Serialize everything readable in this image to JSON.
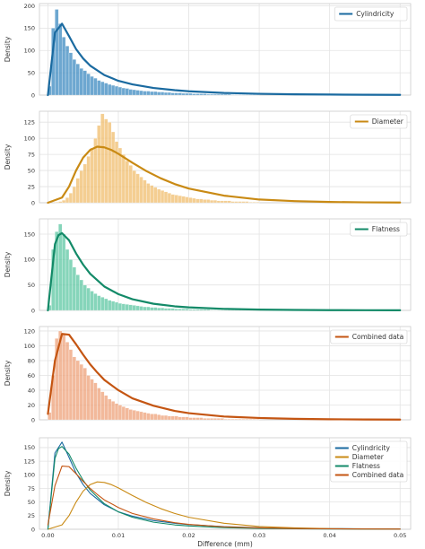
{
  "chart_data": [
    {
      "type": "bar",
      "ylabel": "Density",
      "xlim": [
        -0.0012,
        0.0515
      ],
      "ylim": [
        0,
        205
      ],
      "yticks": [
        0,
        50,
        100,
        150,
        200
      ],
      "xticks": [
        0.0,
        0.01,
        0.02,
        0.03,
        0.04,
        0.05
      ],
      "legend_position": "top-right",
      "color": "#3c89c0",
      "histogram": {
        "bin_width": 0.0005,
        "heights": [
          20,
          150,
          192,
          160,
          130,
          110,
          95,
          80,
          70,
          60,
          55,
          48,
          42,
          38,
          33,
          30,
          27,
          24,
          22,
          20,
          18,
          16,
          15,
          13,
          12,
          11,
          10,
          9,
          9,
          8,
          8,
          7,
          7,
          6,
          6,
          5,
          5,
          5,
          4,
          4,
          4,
          3,
          3,
          3,
          3,
          2,
          2,
          2,
          2,
          2,
          2,
          2,
          1,
          1,
          1,
          1,
          1,
          1,
          1,
          1
        ]
      },
      "series": [
        {
          "name": "Cylindricity",
          "color": "#1a6aa0",
          "x": [
            0.0,
            0.001,
            0.002,
            0.003,
            0.004,
            0.005,
            0.006,
            0.008,
            0.01,
            0.012,
            0.015,
            0.018,
            0.02,
            0.025,
            0.03,
            0.035,
            0.04,
            0.045,
            0.05
          ],
          "y": [
            0,
            140,
            160,
            132,
            103,
            82,
            66,
            45,
            32,
            24,
            16,
            11,
            8.5,
            4.8,
            2.9,
            1.8,
            1.2,
            0.8,
            0.5
          ]
        }
      ]
    },
    {
      "type": "bar",
      "ylabel": "Density",
      "xlim": [
        -0.0012,
        0.0515
      ],
      "ylim": [
        0,
        142
      ],
      "yticks": [
        0,
        25,
        50,
        75,
        100,
        125
      ],
      "xticks": [
        0.0,
        0.01,
        0.02,
        0.03,
        0.04,
        0.05
      ],
      "legend_position": "top-right",
      "color": "#f0be6e",
      "histogram": {
        "bin_width": 0.0005,
        "heights": [
          0,
          0,
          1,
          2,
          4,
          8,
          15,
          25,
          38,
          50,
          60,
          72,
          85,
          100,
          120,
          138,
          130,
          125,
          110,
          95,
          85,
          75,
          65,
          58,
          50,
          45,
          40,
          35,
          30,
          27,
          24,
          21,
          19,
          17,
          15,
          13,
          12,
          11,
          10,
          9,
          8,
          7,
          6,
          6,
          5,
          5,
          4,
          4,
          3,
          3,
          3,
          3,
          2,
          2,
          2,
          2,
          2,
          1,
          1,
          1
        ]
      },
      "series": [
        {
          "name": "Diameter",
          "color": "#c98a14",
          "x": [
            0.0,
            0.002,
            0.003,
            0.004,
            0.005,
            0.006,
            0.007,
            0.008,
            0.009,
            0.01,
            0.012,
            0.014,
            0.016,
            0.018,
            0.02,
            0.025,
            0.03,
            0.035,
            0.04,
            0.045,
            0.05
          ],
          "y": [
            0,
            8,
            25,
            50,
            70,
            82,
            87,
            86,
            82,
            76,
            62,
            49,
            38,
            29,
            22,
            11,
            5,
            2.5,
            1.2,
            0.6,
            0.3
          ]
        }
      ]
    },
    {
      "type": "bar",
      "ylabel": "Density",
      "xlim": [
        -0.0012,
        0.0515
      ],
      "ylim": [
        0,
        180
      ],
      "yticks": [
        0,
        50,
        100,
        150
      ],
      "xticks": [
        0.0,
        0.01,
        0.02,
        0.03,
        0.04,
        0.05
      ],
      "legend_position": "top-right",
      "color": "#5ec7a3",
      "histogram": {
        "bin_width": 0.0005,
        "heights": [
          10,
          120,
          155,
          170,
          150,
          120,
          100,
          85,
          70,
          60,
          50,
          44,
          38,
          33,
          29,
          26,
          23,
          20,
          18,
          16,
          14,
          13,
          12,
          11,
          10,
          9,
          8,
          7,
          7,
          6,
          6,
          5,
          5,
          4,
          4,
          4,
          3,
          3,
          3,
          3,
          2,
          2,
          2,
          2,
          2,
          2,
          1,
          1,
          1,
          1,
          1,
          1,
          1,
          1,
          1,
          1,
          1,
          1,
          1,
          1
        ]
      },
      "series": [
        {
          "name": "Flatness",
          "color": "#138a68",
          "x": [
            0.0,
            0.001,
            0.0015,
            0.002,
            0.003,
            0.004,
            0.005,
            0.006,
            0.008,
            0.01,
            0.012,
            0.015,
            0.018,
            0.02,
            0.025,
            0.03,
            0.035,
            0.04,
            0.045,
            0.05
          ],
          "y": [
            0,
            130,
            148,
            152,
            138,
            112,
            90,
            72,
            47,
            32,
            22,
            13,
            8,
            6,
            3,
            1.6,
            0.9,
            0.5,
            0.3,
            0.2
          ]
        }
      ]
    },
    {
      "type": "bar",
      "ylabel": "Density",
      "xlim": [
        -0.0012,
        0.0515
      ],
      "ylim": [
        0,
        126
      ],
      "yticks": [
        0,
        20,
        40,
        60,
        80,
        100,
        120
      ],
      "xticks": [
        0.0,
        0.01,
        0.02,
        0.03,
        0.04,
        0.05
      ],
      "legend_position": "top-right",
      "color": "#eea27a",
      "histogram": {
        "bin_width": 0.0005,
        "heights": [
          10,
          60,
          110,
          120,
          115,
          105,
          95,
          85,
          80,
          75,
          70,
          60,
          55,
          50,
          43,
          38,
          33,
          28,
          25,
          22,
          20,
          18,
          16,
          14,
          13,
          12,
          11,
          10,
          9,
          8,
          8,
          7,
          6,
          6,
          5,
          5,
          5,
          4,
          4,
          4,
          3,
          3,
          3,
          3,
          2,
          2,
          2,
          2,
          2,
          2,
          1,
          1,
          1,
          1,
          1,
          1,
          1,
          1,
          1,
          1
        ]
      },
      "series": [
        {
          "name": "Combined data",
          "color": "#c45512",
          "x": [
            0.0,
            0.001,
            0.002,
            0.003,
            0.004,
            0.005,
            0.006,
            0.007,
            0.008,
            0.01,
            0.012,
            0.015,
            0.018,
            0.02,
            0.025,
            0.03,
            0.035,
            0.04,
            0.045,
            0.05
          ],
          "y": [
            8,
            80,
            116,
            115,
            102,
            88,
            75,
            64,
            54,
            40,
            29,
            19,
            12,
            9,
            4.5,
            2.5,
            1.4,
            0.8,
            0.5,
            0.3
          ]
        }
      ]
    },
    {
      "type": "line",
      "xlabel": "Difference (mm)",
      "ylabel": "Density",
      "xlim": [
        -0.0012,
        0.0515
      ],
      "ylim": [
        0,
        168
      ],
      "yticks": [
        0,
        25,
        50,
        75,
        100,
        125,
        150
      ],
      "xticks": [
        0.0,
        0.01,
        0.02,
        0.03,
        0.04,
        0.05
      ],
      "xtick_labels": [
        "0.00",
        "0.01",
        "0.02",
        "0.03",
        "0.04",
        "0.05"
      ],
      "legend_position": "top-right",
      "series": [
        {
          "name": "Cylindricity",
          "color": "#1a6aa0",
          "x": [
            0.0,
            0.001,
            0.002,
            0.003,
            0.004,
            0.005,
            0.006,
            0.008,
            0.01,
            0.012,
            0.015,
            0.018,
            0.02,
            0.025,
            0.03,
            0.035,
            0.04,
            0.045,
            0.05
          ],
          "y": [
            0,
            140,
            160,
            132,
            103,
            82,
            66,
            45,
            32,
            24,
            16,
            11,
            8.5,
            4.8,
            2.9,
            1.8,
            1.2,
            0.8,
            0.5
          ]
        },
        {
          "name": "Diameter",
          "color": "#c98a14",
          "x": [
            0.0,
            0.002,
            0.003,
            0.004,
            0.005,
            0.006,
            0.007,
            0.008,
            0.009,
            0.01,
            0.012,
            0.014,
            0.016,
            0.018,
            0.02,
            0.025,
            0.03,
            0.035,
            0.04,
            0.045,
            0.05
          ],
          "y": [
            0,
            8,
            25,
            50,
            70,
            82,
            87,
            86,
            82,
            76,
            62,
            49,
            38,
            29,
            22,
            11,
            5,
            2.5,
            1.2,
            0.6,
            0.3
          ]
        },
        {
          "name": "Flatness",
          "color": "#138a68",
          "x": [
            0.0,
            0.001,
            0.0015,
            0.002,
            0.003,
            0.004,
            0.005,
            0.006,
            0.008,
            0.01,
            0.012,
            0.015,
            0.018,
            0.02,
            0.025,
            0.03,
            0.035,
            0.04,
            0.045,
            0.05
          ],
          "y": [
            0,
            130,
            148,
            152,
            138,
            112,
            90,
            72,
            47,
            32,
            22,
            13,
            8,
            6,
            3,
            1.6,
            0.9,
            0.5,
            0.3,
            0.2
          ]
        },
        {
          "name": "Combined data",
          "color": "#c45512",
          "x": [
            0.0,
            0.001,
            0.002,
            0.003,
            0.004,
            0.005,
            0.006,
            0.007,
            0.008,
            0.01,
            0.012,
            0.015,
            0.018,
            0.02,
            0.025,
            0.03,
            0.035,
            0.04,
            0.045,
            0.05
          ],
          "y": [
            8,
            80,
            116,
            115,
            102,
            88,
            75,
            64,
            54,
            40,
            29,
            19,
            12,
            9,
            4.5,
            2.5,
            1.4,
            0.8,
            0.5,
            0.3
          ]
        }
      ]
    }
  ]
}
